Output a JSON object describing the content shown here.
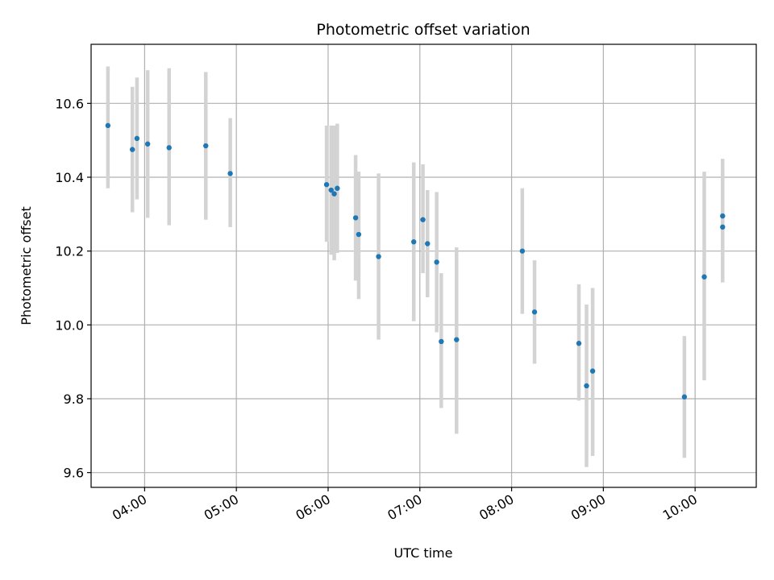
{
  "chart_data": {
    "type": "scatter",
    "title": "Photometric offset variation",
    "xlabel": "UTC time",
    "ylabel": "Photometric offset",
    "grid": true,
    "legend": "none",
    "marker_color": "#1f77b4",
    "errorbar_color": "#d3d3d3",
    "x_unit": "UTC hh:mm",
    "xlim": [
      "03:25",
      "10:40"
    ],
    "ylim": [
      9.56,
      10.76
    ],
    "x_ticks": [
      "04:00",
      "05:00",
      "06:00",
      "07:00",
      "08:00",
      "09:00",
      "10:00"
    ],
    "y_ticks": [
      9.6,
      9.8,
      10.0,
      10.2,
      10.4,
      10.6
    ],
    "points": [
      {
        "x": "03:36",
        "y": 10.54,
        "ylow": 10.37,
        "yhigh": 10.7
      },
      {
        "x": "03:52",
        "y": 10.475,
        "ylow": 10.305,
        "yhigh": 10.645
      },
      {
        "x": "03:55",
        "y": 10.505,
        "ylow": 10.34,
        "yhigh": 10.67
      },
      {
        "x": "04:02",
        "y": 10.49,
        "ylow": 10.29,
        "yhigh": 10.69
      },
      {
        "x": "04:16",
        "y": 10.48,
        "ylow": 10.27,
        "yhigh": 10.695
      },
      {
        "x": "04:40",
        "y": 10.485,
        "ylow": 10.285,
        "yhigh": 10.685
      },
      {
        "x": "04:56",
        "y": 10.41,
        "ylow": 10.265,
        "yhigh": 10.56
      },
      {
        "x": "05:59",
        "y": 10.38,
        "ylow": 10.225,
        "yhigh": 10.54
      },
      {
        "x": "06:02",
        "y": 10.365,
        "ylow": 10.19,
        "yhigh": 10.54
      },
      {
        "x": "06:04",
        "y": 10.355,
        "ylow": 10.175,
        "yhigh": 10.54
      },
      {
        "x": "06:06",
        "y": 10.37,
        "ylow": 10.195,
        "yhigh": 10.545
      },
      {
        "x": "06:18",
        "y": 10.29,
        "ylow": 10.12,
        "yhigh": 10.46
      },
      {
        "x": "06:20",
        "y": 10.245,
        "ylow": 10.07,
        "yhigh": 10.415
      },
      {
        "x": "06:33",
        "y": 10.185,
        "ylow": 9.96,
        "yhigh": 10.41
      },
      {
        "x": "06:56",
        "y": 10.225,
        "ylow": 10.01,
        "yhigh": 10.44
      },
      {
        "x": "07:02",
        "y": 10.285,
        "ylow": 10.14,
        "yhigh": 10.435
      },
      {
        "x": "07:05",
        "y": 10.22,
        "ylow": 10.075,
        "yhigh": 10.365
      },
      {
        "x": "07:11",
        "y": 10.17,
        "ylow": 9.98,
        "yhigh": 10.36
      },
      {
        "x": "07:14",
        "y": 9.955,
        "ylow": 9.775,
        "yhigh": 10.14
      },
      {
        "x": "07:24",
        "y": 9.96,
        "ylow": 9.705,
        "yhigh": 10.21
      },
      {
        "x": "08:07",
        "y": 10.2,
        "ylow": 10.03,
        "yhigh": 10.37
      },
      {
        "x": "08:15",
        "y": 10.035,
        "ylow": 9.895,
        "yhigh": 10.175
      },
      {
        "x": "08:44",
        "y": 9.95,
        "ylow": 9.795,
        "yhigh": 10.11
      },
      {
        "x": "08:49",
        "y": 9.835,
        "ylow": 9.615,
        "yhigh": 10.055
      },
      {
        "x": "08:53",
        "y": 9.875,
        "ylow": 9.645,
        "yhigh": 10.1
      },
      {
        "x": "09:53",
        "y": 9.805,
        "ylow": 9.64,
        "yhigh": 9.97
      },
      {
        "x": "10:06",
        "y": 10.13,
        "ylow": 9.85,
        "yhigh": 10.415
      },
      {
        "x": "10:18",
        "y": 10.295,
        "ylow": 10.13,
        "yhigh": 10.45
      },
      {
        "x": "10:18",
        "y": 10.265,
        "ylow": 10.115,
        "yhigh": 10.415
      }
    ]
  }
}
